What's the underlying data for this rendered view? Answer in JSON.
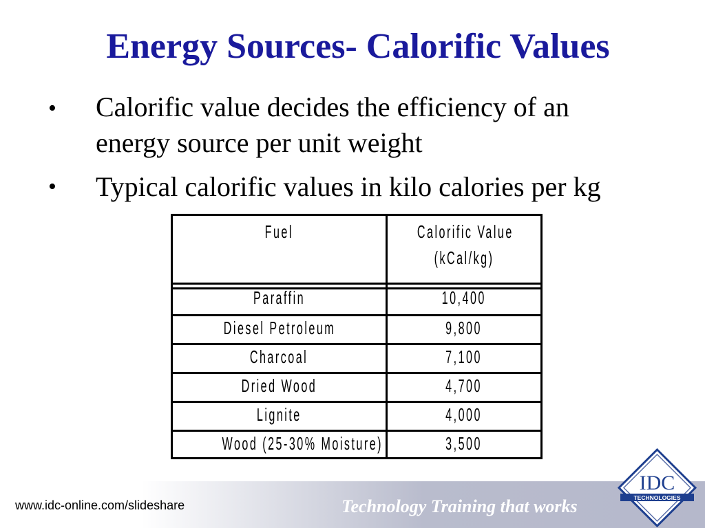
{
  "slide": {
    "title": "Energy Sources- Calorific Values",
    "bullets": [
      {
        "marker": "•",
        "line1": "Calorific value decides the efficiency of an",
        "line2": "energy source per unit weight"
      },
      {
        "marker": "•",
        "line1": "Typical calorific values in kilo calories per kg"
      }
    ]
  },
  "table": {
    "headers": {
      "fuel": "Fuel",
      "value_line1": "Calorific Value",
      "value_line2": "(kCal/kg)"
    },
    "rows": [
      {
        "fuel": "Paraffin",
        "value": "10,400"
      },
      {
        "fuel": "Diesel Petroleum",
        "value": "9,800"
      },
      {
        "fuel": "Charcoal",
        "value": "7,100"
      },
      {
        "fuel": "Dried Wood",
        "value": "4,700"
      },
      {
        "fuel": "Lignite",
        "value": "4,000"
      },
      {
        "fuel": "Wood (25-30% Moisture)",
        "value": "3,500"
      }
    ]
  },
  "footer": {
    "url": "www.idc-online.com/slideshare",
    "tagline": "Technology Training that works",
    "logo": {
      "name": "IDC",
      "subtext": "TECHNOLOGIES"
    }
  },
  "colors": {
    "title": "#1a1a9c",
    "footer_gradient_end": "#b5b8cb",
    "logo_blue": "#1e3f8f"
  }
}
